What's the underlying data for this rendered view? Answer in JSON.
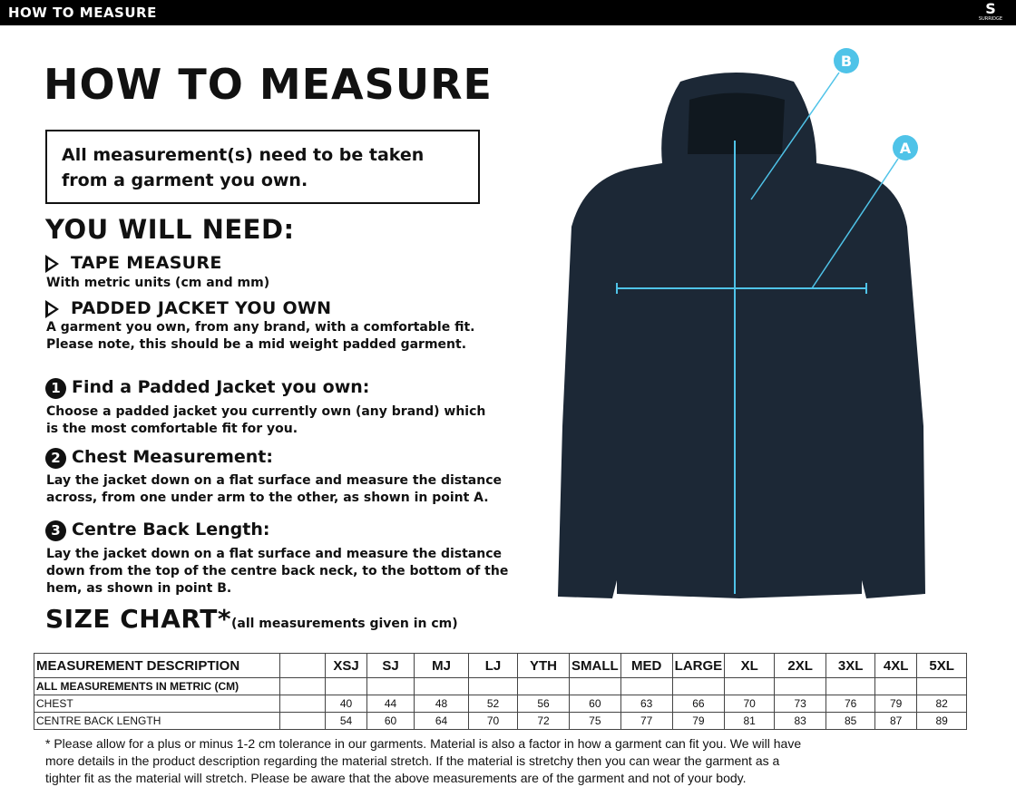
{
  "header": {
    "title": "HOW TO MEASURE",
    "logo": "SURRIDGE"
  },
  "page_title": "HOW TO MEASURE",
  "notice": "All measurement(s) need to be taken from a garment you own.",
  "need": {
    "title": "YOU WILL NEED:",
    "items": [
      {
        "label": "TAPE MEASURE",
        "desc": "With metric units (cm and mm)"
      },
      {
        "label": "PADDED JACKET YOU OWN",
        "desc": "A garment you own, from any brand, with a comfortable fit. Please note, this should be a mid weight padded garment."
      }
    ]
  },
  "steps": [
    {
      "num": "1",
      "title": "Find a Padded Jacket you own:",
      "desc": "Choose a padded jacket you currently own (any brand) which is the most comfortable fit for you."
    },
    {
      "num": "2",
      "title": "Chest Measurement:",
      "desc": "Lay the jacket down on a flat surface and measure the distance across, from one under arm to the other, as shown in point A."
    },
    {
      "num": "3",
      "title": "Centre Back Length:",
      "desc": "Lay the jacket down on a flat surface and measure the distance down from the top of the centre back neck, to the bottom of the hem, as shown in point B."
    }
  ],
  "diagram": {
    "point_a": "A",
    "point_b": "B",
    "accent": "#4fc3e8",
    "garment_color": "#1c2836"
  },
  "size_chart": {
    "title": "SIZE CHART*",
    "subtitle": "(all measurements given in cm)",
    "header": "MEASUREMENT DESCRIPTION",
    "sizes": [
      "XSJ",
      "SJ",
      "MJ",
      "LJ",
      "YTH",
      "SMALL",
      "MED",
      "LARGE",
      "XL",
      "2XL",
      "3XL",
      "4XL",
      "5XL"
    ],
    "metric_row": "ALL MEASUREMENTS IN METRIC (CM)",
    "rows": [
      {
        "label": "CHEST",
        "values": [
          "40",
          "44",
          "48",
          "52",
          "56",
          "60",
          "63",
          "66",
          "70",
          "73",
          "76",
          "79",
          "82"
        ]
      },
      {
        "label": "CENTRE BACK LENGTH",
        "values": [
          "54",
          "60",
          "64",
          "70",
          "72",
          "75",
          "77",
          "79",
          "81",
          "83",
          "85",
          "87",
          "89"
        ]
      }
    ]
  },
  "footnote": "* Please allow for a plus or minus 1-2 cm tolerance in our garments. Material is also a factor in how a garment can fit you. We will have more details in the product description regarding the material stretch.  If the material is stretchy then you can wear the garment as a tighter fit as the material will stretch.  Please be aware that the above measurements are of the garment and not of your body."
}
